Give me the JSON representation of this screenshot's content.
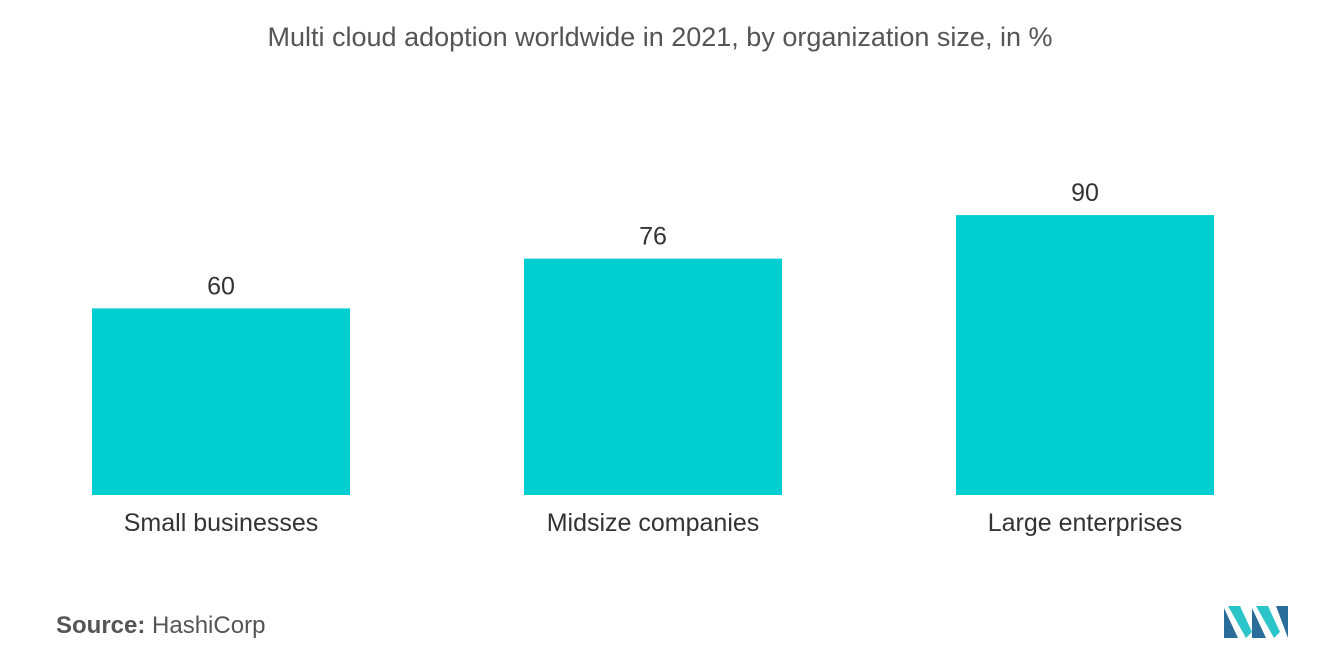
{
  "chart_data": {
    "type": "bar",
    "title": "Multi cloud adoption worldwide in 2021, by organization size, in %",
    "categories": [
      "Small businesses",
      "Midsize companies",
      "Large enterprises"
    ],
    "values": [
      60,
      76,
      90
    ],
    "xlabel": "",
    "ylabel": "",
    "ylim": [
      0,
      100
    ],
    "grid": false,
    "bar_color": "#00CED1"
  },
  "footer": {
    "source_label": "Source:",
    "source_value": "HashiCorp"
  },
  "colors": {
    "logo_dark": "#2A6D9A",
    "logo_light": "#2BC4C9"
  }
}
